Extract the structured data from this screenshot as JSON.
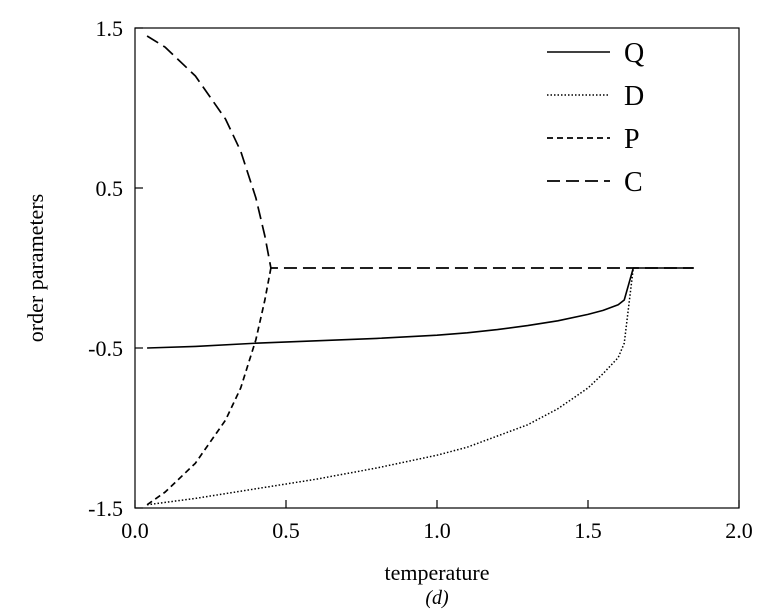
{
  "chart_data": {
    "type": "line",
    "title": "",
    "xlabel": "temperature",
    "ylabel": "order parameters",
    "panel_label": "(d)",
    "xlim": [
      0.0,
      2.0
    ],
    "ylim": [
      -1.5,
      1.5
    ],
    "x_ticks": [
      0.0,
      0.5,
      1.0,
      1.5,
      2.0
    ],
    "x_tick_labels": [
      "0.0",
      "0.5",
      "1.0",
      "1.5",
      "2.0"
    ],
    "y_ticks": [
      -1.5,
      -0.5,
      0.5,
      1.5
    ],
    "y_tick_labels": [
      "-1.5",
      "-0.5",
      "0.5",
      "1.5"
    ],
    "grid": false,
    "legend_position": "top-right",
    "series": [
      {
        "name": "Q",
        "style": "solid",
        "x": [
          0.04,
          0.2,
          0.4,
          0.6,
          0.8,
          1.0,
          1.1,
          1.2,
          1.3,
          1.4,
          1.5,
          1.55,
          1.6,
          1.62,
          1.65,
          1.85
        ],
        "y": [
          -0.5,
          -0.49,
          -0.47,
          -0.455,
          -0.44,
          -0.42,
          -0.405,
          -0.385,
          -0.36,
          -0.33,
          -0.29,
          -0.265,
          -0.23,
          -0.2,
          0.0,
          0.0
        ]
      },
      {
        "name": "D",
        "style": "dotted",
        "x": [
          0.04,
          0.2,
          0.4,
          0.6,
          0.8,
          1.0,
          1.1,
          1.2,
          1.3,
          1.4,
          1.5,
          1.55,
          1.6,
          1.62,
          1.65
        ],
        "y": [
          -1.48,
          -1.44,
          -1.38,
          -1.32,
          -1.25,
          -1.17,
          -1.12,
          -1.05,
          -0.98,
          -0.88,
          -0.75,
          -0.66,
          -0.56,
          -0.47,
          0.0
        ]
      },
      {
        "name": "P",
        "style": "short-dash",
        "x": [
          0.04,
          0.1,
          0.2,
          0.3,
          0.35,
          0.4,
          0.43,
          0.45
        ],
        "y": [
          -1.48,
          -1.4,
          -1.22,
          -0.95,
          -0.75,
          -0.45,
          -0.2,
          0.0
        ]
      },
      {
        "name": "C",
        "style": "long-dash",
        "x": [
          0.04,
          0.1,
          0.2,
          0.3,
          0.35,
          0.4,
          0.43,
          0.45,
          1.0,
          1.5,
          1.85
        ],
        "y": [
          1.45,
          1.38,
          1.2,
          0.93,
          0.73,
          0.44,
          0.2,
          0.0,
          0.0,
          0.0,
          0.0
        ]
      }
    ]
  }
}
